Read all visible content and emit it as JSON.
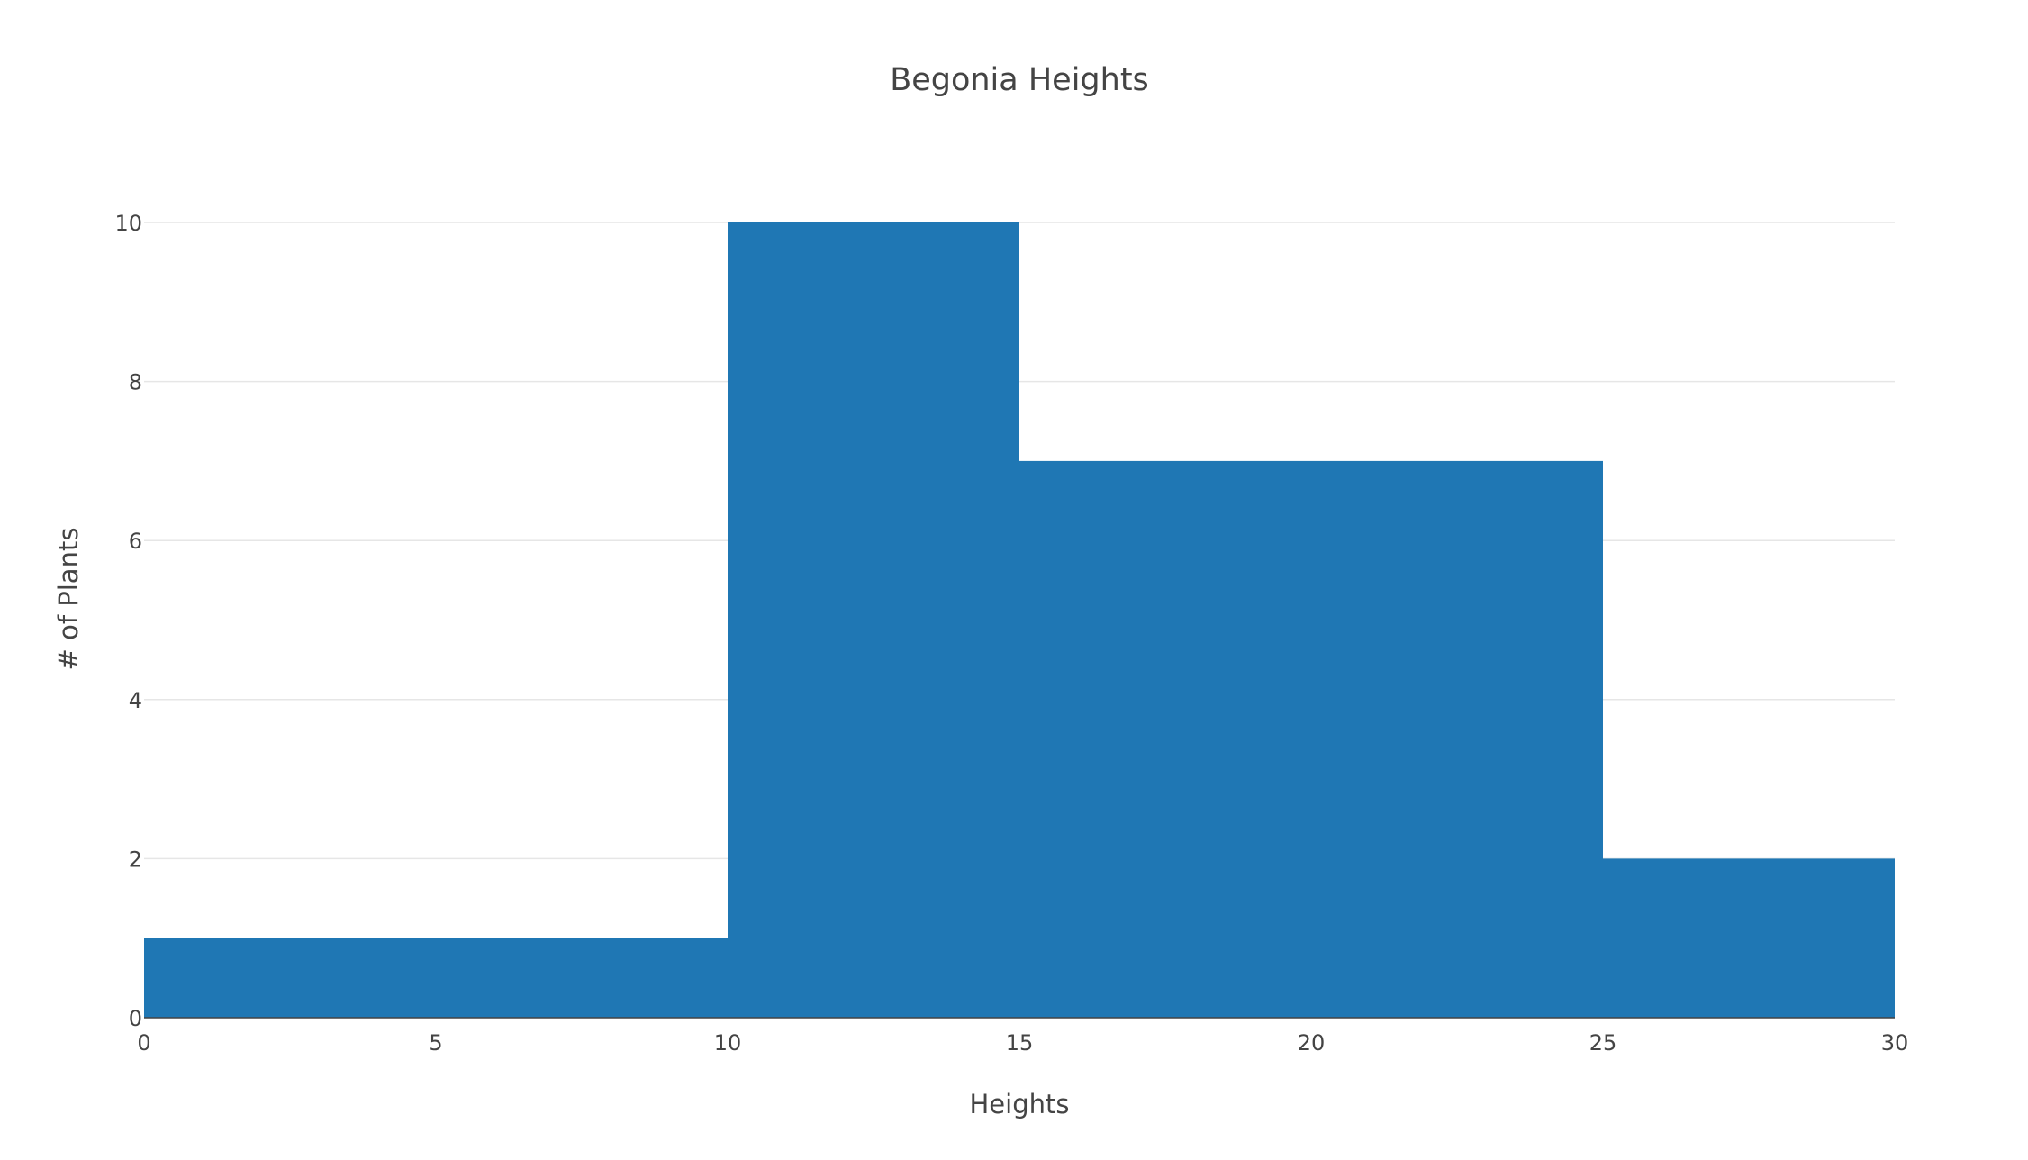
{
  "chart_data": {
    "type": "bar",
    "title": "Begonia Heights",
    "xlabel": "Heights",
    "ylabel": "# of Plants",
    "bins": [
      {
        "start": 0,
        "end": 10,
        "count": 1
      },
      {
        "start": 10,
        "end": 15,
        "count": 10
      },
      {
        "start": 15,
        "end": 25,
        "count": 7
      },
      {
        "start": 25,
        "end": 30,
        "count": 2
      }
    ],
    "xlim": [
      0,
      30
    ],
    "ylim": [
      0,
      10
    ],
    "x_ticks": [
      "0",
      "5",
      "10",
      "15",
      "20",
      "25",
      "30"
    ],
    "y_ticks": [
      "0",
      "2",
      "4",
      "6",
      "8",
      "10"
    ],
    "grid": true,
    "legend": "none",
    "colors": {
      "bar": "#1f77b4",
      "grid": "#e6e6e6",
      "text": "#444444",
      "axis": "#444444"
    }
  }
}
